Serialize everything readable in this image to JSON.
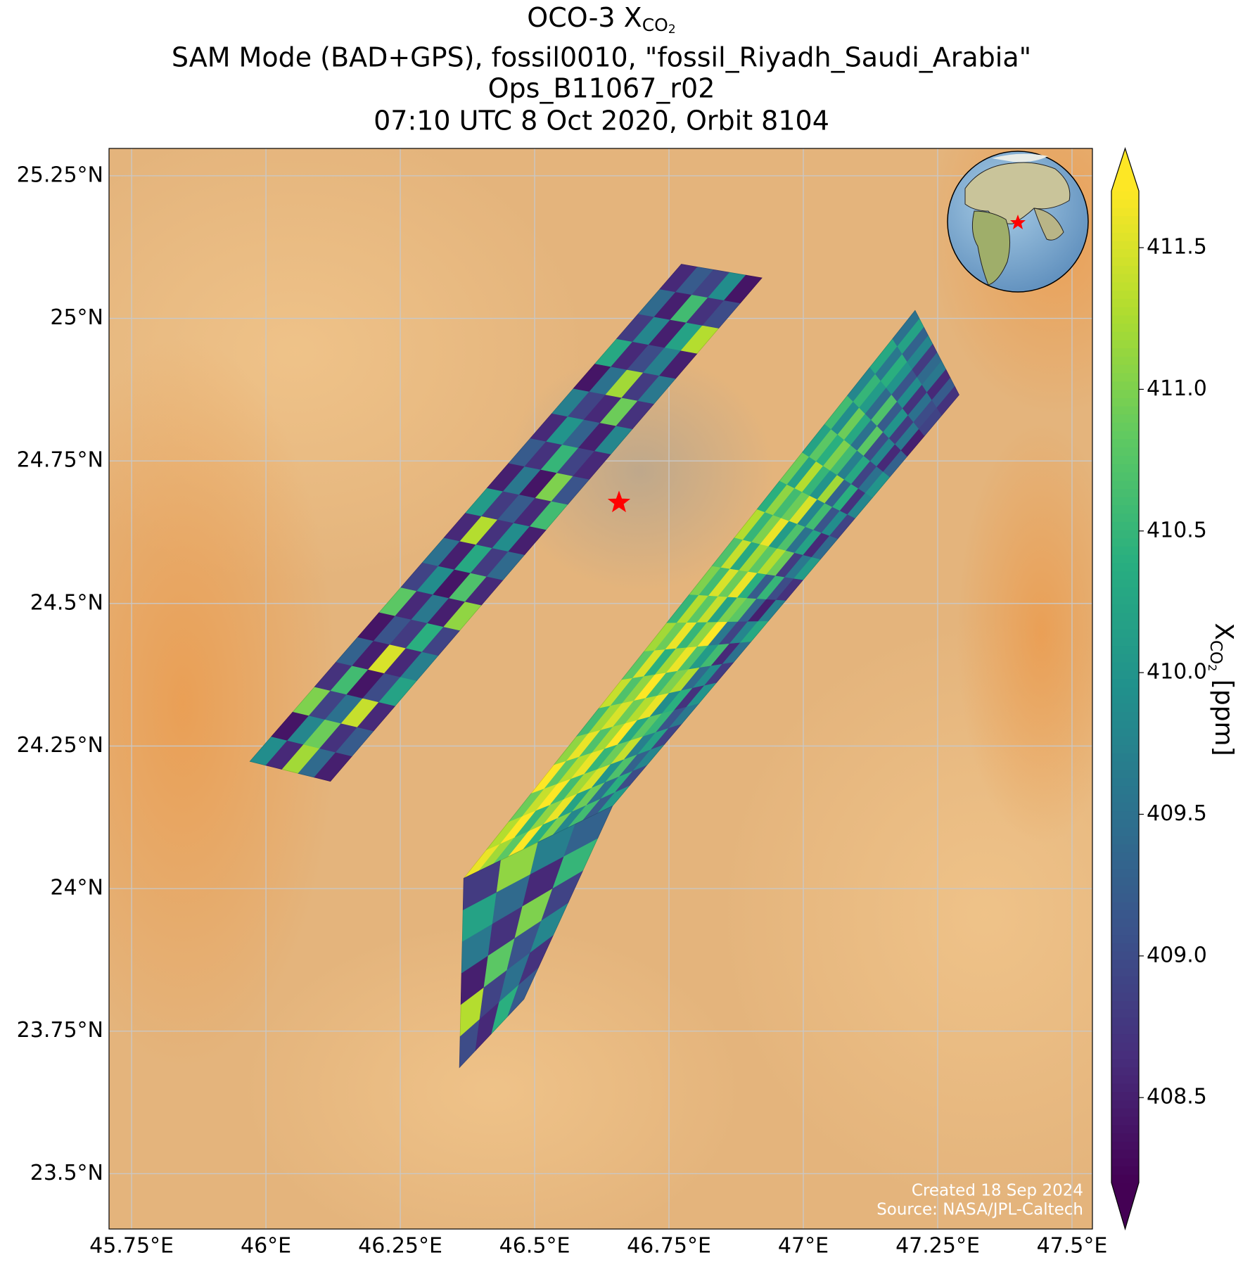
{
  "chart_data": {
    "type": "map",
    "title_parts": [
      "OCO-3 X",
      "CO",
      "2"
    ],
    "subtitle_lines": [
      "SAM Mode (BAD+GPS), fossil0010, \"fossil_Riyadh_Saudi_Arabia\"",
      "Ops_B11067_r02",
      "07:10 UTC 8 Oct 2020, Orbit 8104"
    ],
    "xlim": [
      45.708,
      47.538
    ],
    "ylim": [
      23.403,
      25.298
    ],
    "xticks": [
      {
        "value": 45.75,
        "label": "45.75°E"
      },
      {
        "value": 46,
        "label": "46°E"
      },
      {
        "value": 46.25,
        "label": "46.25°E"
      },
      {
        "value": 46.5,
        "label": "46.5°E"
      },
      {
        "value": 46.75,
        "label": "46.75°E"
      },
      {
        "value": 47,
        "label": "47°E"
      },
      {
        "value": 47.25,
        "label": "47.25°E"
      },
      {
        "value": 47.5,
        "label": "47.5°E"
      }
    ],
    "yticks": [
      {
        "value": 23.5,
        "label": "23.5°N"
      },
      {
        "value": 23.75,
        "label": "23.75°N"
      },
      {
        "value": 24,
        "label": "24°N"
      },
      {
        "value": 24.25,
        "label": "24.25°N"
      },
      {
        "value": 24.5,
        "label": "24.5°N"
      },
      {
        "value": 24.75,
        "label": "24.75°N"
      },
      {
        "value": 25,
        "label": "25°N"
      },
      {
        "value": 25.25,
        "label": "25.25°N"
      }
    ],
    "grid": true,
    "marker": {
      "lon": 46.657,
      "lat": 24.677,
      "color": "#ff0000"
    },
    "colorbar": {
      "colormap": "viridis",
      "clim": [
        408.2,
        411.7
      ],
      "extend": "both",
      "label_parts": [
        "X",
        "CO",
        "2",
        " [ppm]"
      ],
      "ticks": [
        408.5,
        {
          "value": 409,
          "label": "409.0"
        },
        409.5,
        {
          "value": 410,
          "label": "410.0"
        },
        410.5,
        {
          "value": 411,
          "label": "411.0"
        },
        411.5
      ]
    },
    "swaths": [
      {
        "corners": {
          "lon": [
            45.97,
            46.12,
            46.923,
            46.773
          ],
          "lat": [
            24.223,
            24.188,
            25.071,
            25.095
          ]
        },
        "values": [
          [
            409.9,
            408.6,
            411.2,
            409.4,
            408.5
          ],
          [
            408.4,
            409.8,
            410.9,
            408.7,
            409.2
          ],
          [
            411.0,
            408.9,
            409.5,
            411.4,
            408.6
          ],
          [
            408.7,
            410.6,
            408.4,
            409.0,
            410.2
          ],
          [
            409.3,
            408.5,
            411.5,
            408.6,
            409.7
          ],
          [
            408.4,
            409.1,
            408.8,
            410.4,
            408.9
          ],
          [
            410.8,
            408.6,
            409.6,
            408.5,
            411.1
          ],
          [
            408.9,
            409.9,
            408.4,
            410.7,
            408.6
          ],
          [
            409.5,
            408.5,
            410.3,
            408.8,
            409.4
          ],
          [
            408.6,
            411.3,
            408.7,
            409.9,
            408.5
          ],
          [
            410.1,
            408.8,
            409.2,
            408.6,
            410.6
          ],
          [
            408.5,
            409.6,
            408.4,
            411.0,
            409.1
          ],
          [
            409.2,
            408.7,
            410.5,
            408.9,
            408.6
          ],
          [
            408.6,
            410.0,
            409.3,
            408.5,
            409.8
          ],
          [
            409.7,
            408.9,
            408.6,
            410.9,
            408.7
          ],
          [
            408.4,
            409.5,
            411.2,
            408.8,
            409.6
          ],
          [
            410.3,
            408.6,
            409.0,
            409.7,
            408.5
          ],
          [
            408.8,
            409.8,
            408.5,
            410.2,
            411.3
          ],
          [
            409.4,
            408.5,
            410.6,
            408.7,
            409.0
          ],
          [
            408.6,
            409.2,
            408.9,
            409.9,
            408.4
          ]
        ]
      },
      {
        "corners": {
          "lon": [
            46.368,
            46.645,
            47.29,
            47.208
          ],
          "lat": [
            24.018,
            24.145,
            24.866,
            25.014
          ]
        },
        "values": [
          [
            411.6,
            411.2,
            410.8,
            411.7,
            410.4,
            411.0,
            409.8,
            410.6,
            409.2,
            410.1
          ],
          [
            411.3,
            411.7,
            410.5,
            411.1,
            411.6,
            410.2,
            410.9,
            409.5,
            410.4,
            409.0
          ],
          [
            410.9,
            411.4,
            411.7,
            410.6,
            411.2,
            411.5,
            410.0,
            410.7,
            409.3,
            409.8
          ],
          [
            411.7,
            410.8,
            411.3,
            411.6,
            410.5,
            410.9,
            411.4,
            409.7,
            410.2,
            408.9
          ],
          [
            411.1,
            411.6,
            410.7,
            411.2,
            411.7,
            410.3,
            410.8,
            410.5,
            409.1,
            409.6
          ],
          [
            410.6,
            411.2,
            411.5,
            410.9,
            411.3,
            411.6,
            409.9,
            410.4,
            408.7,
            410.0
          ],
          [
            411.4,
            410.7,
            411.1,
            411.7,
            410.6,
            411.0,
            411.3,
            409.4,
            409.9,
            408.8
          ],
          [
            410.8,
            411.5,
            410.4,
            411.2,
            411.6,
            410.7,
            410.1,
            410.6,
            408.6,
            409.5
          ],
          [
            411.2,
            410.9,
            411.6,
            410.5,
            411.1,
            411.7,
            409.6,
            408.9,
            409.8,
            410.3
          ],
          [
            410.5,
            411.3,
            410.8,
            411.4,
            410.2,
            411.0,
            410.8,
            409.3,
            408.5,
            409.7
          ],
          [
            411.0,
            410.6,
            411.5,
            410.9,
            411.6,
            410.4,
            409.2,
            410.5,
            409.0,
            408.7
          ],
          [
            410.7,
            411.4,
            410.3,
            411.2,
            410.8,
            411.3,
            410.9,
            408.8,
            409.6,
            410.1
          ],
          [
            411.3,
            410.5,
            411.0,
            411.6,
            410.1,
            410.7,
            409.5,
            410.2,
            408.6,
            409.4
          ],
          [
            410.4,
            411.1,
            410.6,
            410.9,
            411.5,
            409.8,
            410.6,
            409.1,
            409.9,
            408.9
          ],
          [
            410.9,
            410.2,
            411.3,
            410.5,
            410.0,
            411.2,
            409.3,
            410.4,
            408.7,
            409.8
          ],
          [
            410.2,
            410.8,
            410.4,
            411.0,
            410.6,
            409.7,
            410.3,
            408.9,
            409.5,
            410.0
          ],
          [
            410.6,
            409.9,
            410.9,
            410.3,
            409.5,
            410.8,
            409.0,
            409.8,
            408.6,
            409.3
          ],
          [
            409.8,
            410.5,
            410.1,
            409.4,
            410.7,
            409.2,
            410.0,
            408.8,
            409.6,
            408.5
          ],
          [
            410.3,
            409.6,
            410.4,
            410.0,
            409.1,
            409.9,
            408.7,
            409.5,
            409.0,
            408.9
          ],
          [
            409.5,
            410.2,
            409.3,
            409.8,
            408.8,
            409.4,
            409.6,
            408.6,
            409.2,
            408.7
          ]
        ]
      },
      {
        "corners": {
          "lon": [
            46.36,
            46.48,
            46.645,
            46.368
          ],
          "lat": [
            23.686,
            23.806,
            24.145,
            24.018
          ]
        },
        "values": [
          [
            409.0,
            408.6,
            410.4,
            409.2
          ],
          [
            411.3,
            408.9,
            409.5,
            408.7
          ],
          [
            408.5,
            410.8,
            409.1,
            409.8
          ],
          [
            409.6,
            408.7,
            411.0,
            408.9
          ],
          [
            410.2,
            409.4,
            408.6,
            410.5
          ],
          [
            408.8,
            411.1,
            409.7,
            409.3
          ]
        ]
      }
    ],
    "credits": [
      "Created 18 Sep 2024",
      "Source: NASA/JPL-Caltech"
    ]
  }
}
